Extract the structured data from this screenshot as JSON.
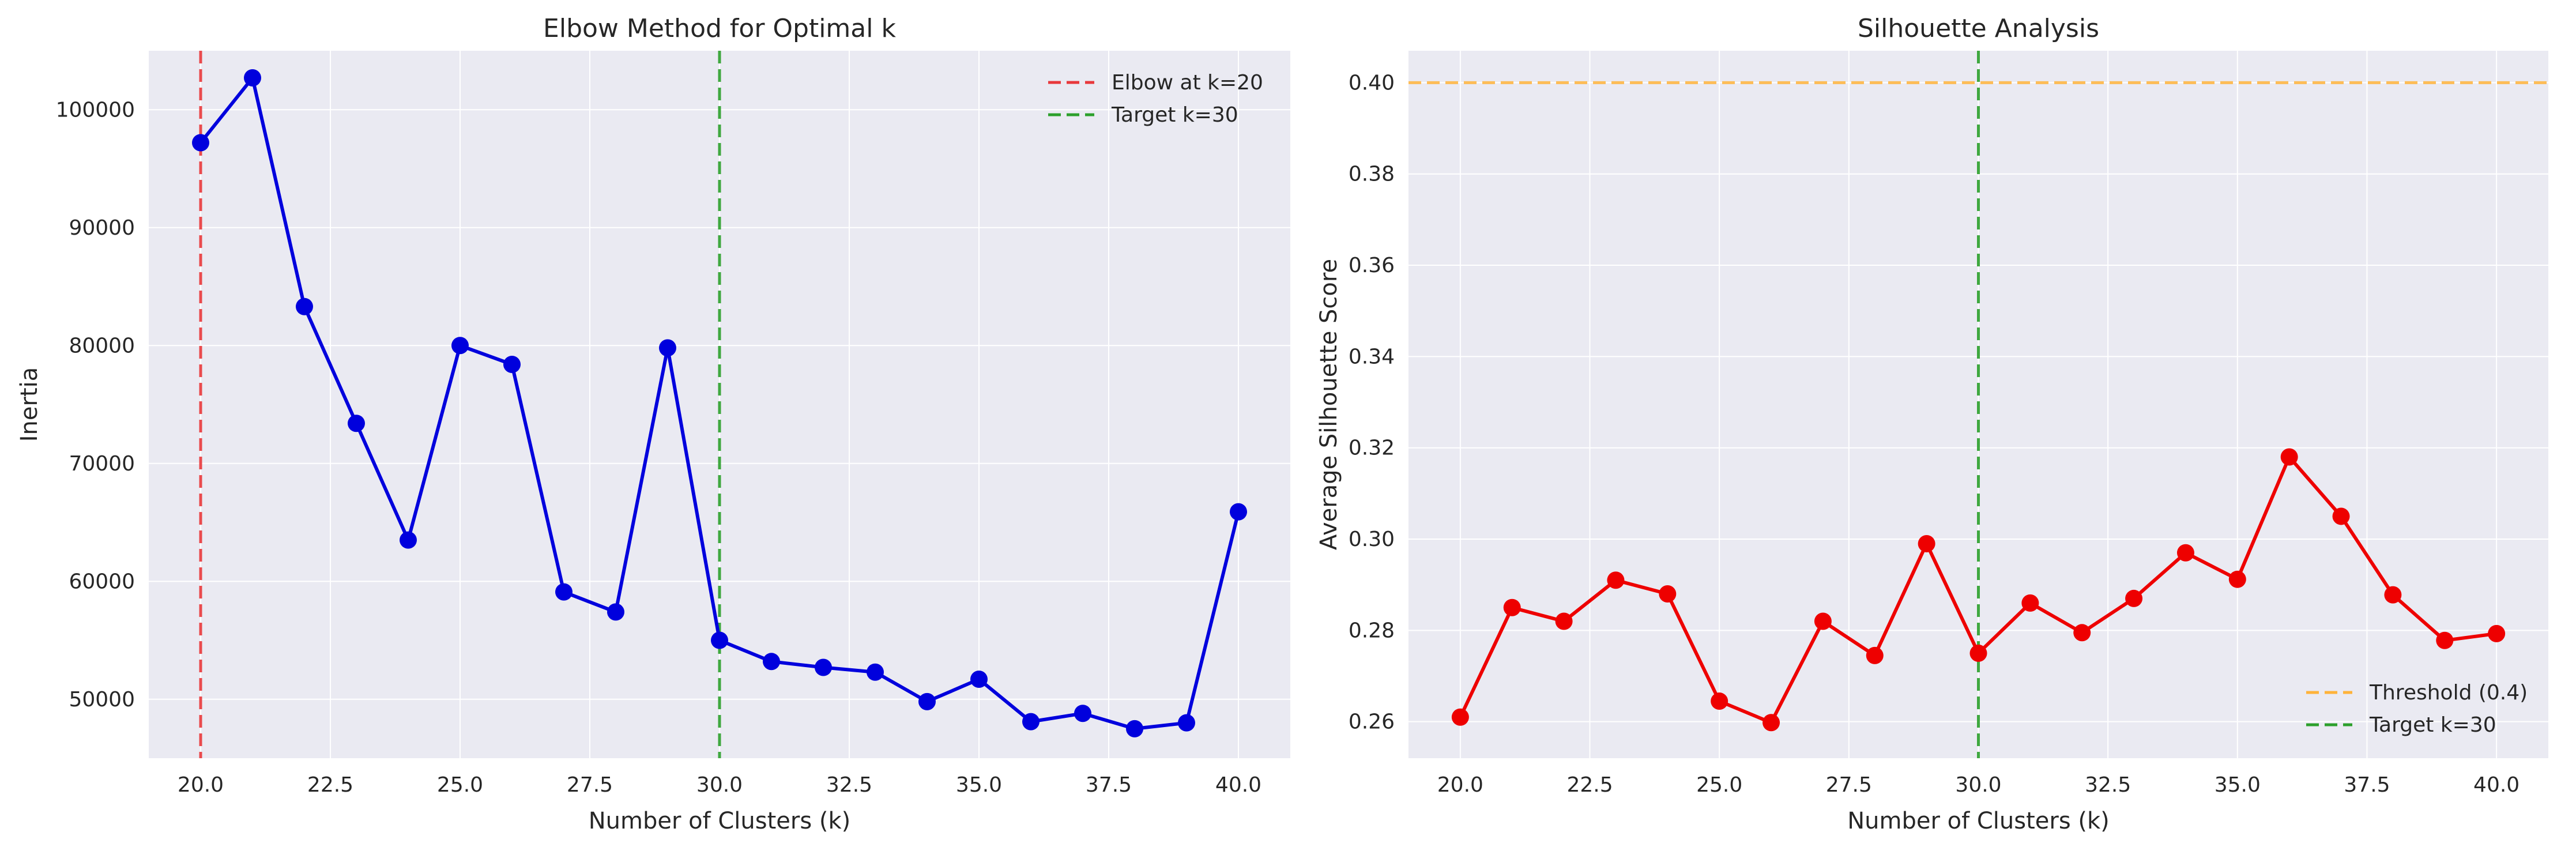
{
  "chart_data": [
    {
      "type": "line",
      "title": "Elbow Method for Optimal k",
      "xlabel": "Number of Clusters (k)",
      "ylabel": "Inertia",
      "xlim": [
        19.0,
        41.0
      ],
      "ylim": [
        45000,
        105000
      ],
      "xticks": [
        "20.0",
        "22.5",
        "25.0",
        "27.5",
        "30.0",
        "32.5",
        "35.0",
        "37.5",
        "40.0"
      ],
      "yticks": [
        "50000",
        "60000",
        "70000",
        "80000",
        "90000",
        "100000"
      ],
      "grid": true,
      "legend_position": "top-right",
      "series": [
        {
          "color": "#0000dd",
          "x": [
            20,
            21,
            22,
            23,
            24,
            25,
            26,
            27,
            28,
            29,
            30,
            31,
            32,
            33,
            34,
            35,
            36,
            37,
            38,
            39,
            40
          ],
          "values": [
            97200,
            102700,
            83300,
            73400,
            63500,
            80000,
            78400,
            59100,
            57400,
            79800,
            55000,
            53200,
            52700,
            52300,
            49800,
            51700,
            48100,
            48800,
            47500,
            48000,
            65900
          ]
        }
      ],
      "vlines": [
        {
          "x": 20,
          "color": "#e8383b",
          "label": "Elbow at k=20"
        },
        {
          "x": 30,
          "color": "#2ca02c",
          "label": "Target k=30"
        }
      ],
      "hlines": []
    },
    {
      "type": "line",
      "title": "Silhouette Analysis",
      "xlabel": "Number of Clusters (k)",
      "ylabel": "Average Silhouette Score",
      "xlim": [
        19.0,
        41.0
      ],
      "ylim": [
        0.252,
        0.407
      ],
      "xticks": [
        "20.0",
        "22.5",
        "25.0",
        "27.5",
        "30.0",
        "32.5",
        "35.0",
        "37.5",
        "40.0"
      ],
      "yticks": [
        "0.26",
        "0.28",
        "0.30",
        "0.32",
        "0.34",
        "0.36",
        "0.38",
        "0.40"
      ],
      "grid": true,
      "legend_position": "bottom-right",
      "series": [
        {
          "color": "#ee0000",
          "x": [
            20,
            21,
            22,
            23,
            24,
            25,
            26,
            27,
            28,
            29,
            30,
            31,
            32,
            33,
            34,
            35,
            36,
            37,
            38,
            39,
            40
          ],
          "values": [
            0.261,
            0.285,
            0.282,
            0.291,
            0.288,
            0.2645,
            0.2598,
            0.282,
            0.2745,
            0.299,
            0.275,
            0.286,
            0.2795,
            0.287,
            0.297,
            0.2912,
            0.318,
            0.305,
            0.2878,
            0.2778,
            0.2793
          ]
        }
      ],
      "vlines": [
        {
          "x": 30,
          "color": "#2ca02c",
          "label": "Target k=30"
        }
      ],
      "hlines": [
        {
          "y": 0.4,
          "color": "#ffb33a",
          "label": "Threshold (0.4)"
        }
      ]
    }
  ]
}
